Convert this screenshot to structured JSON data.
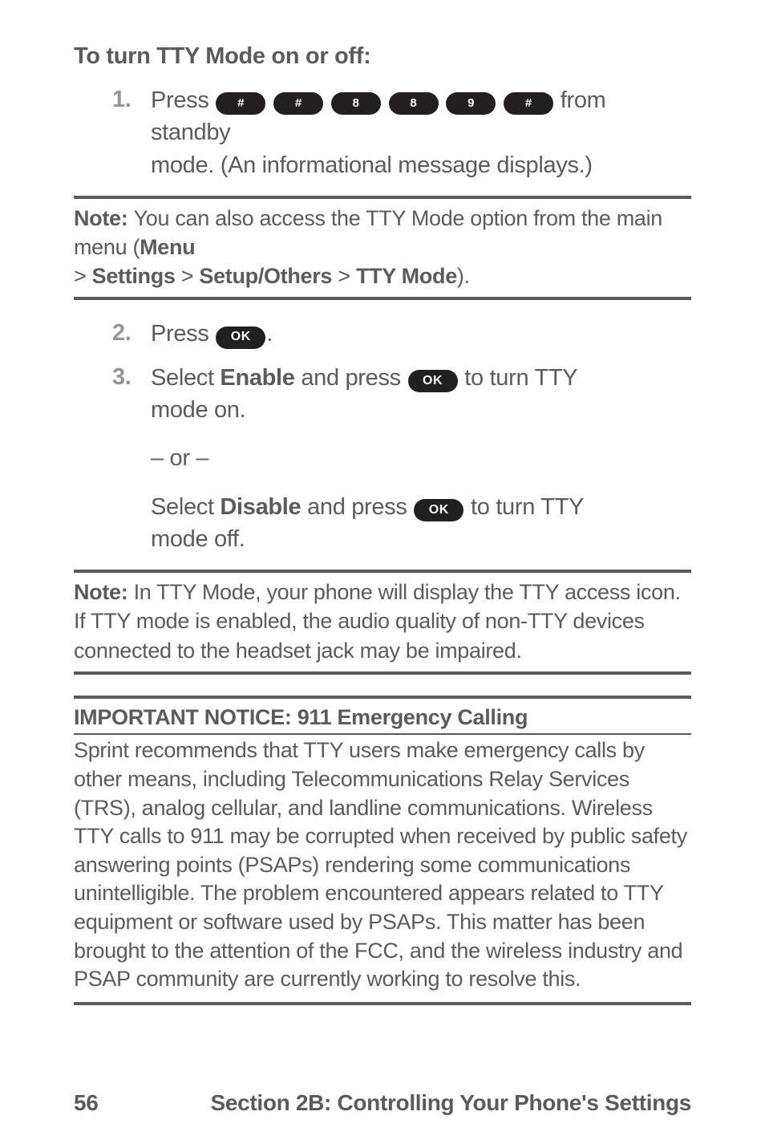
{
  "heading": "To turn TTY  Mode on or off:",
  "steps": {
    "s1": {
      "num": "1.",
      "pre": "Press ",
      "keys": [
        "#",
        "#",
        "8",
        "8",
        "9",
        "#"
      ],
      "post1": " from standby",
      "line2": "mode. (An informational message displays.)"
    }
  },
  "note1": {
    "label": "Note: ",
    "t1": "You can also access the TTY Mode option from the main menu (",
    "menu": "Menu",
    "sep": " > ",
    "settings": "Settings",
    "setup": "Setup/Others",
    "tty": "TTY Mode",
    "tail": ")."
  },
  "steps2": {
    "s2": {
      "num": "2.",
      "pre": "Press ",
      "ok": "OK",
      "post": "."
    },
    "s3": {
      "num": "3.",
      "pre": "Select ",
      "enable": "Enable",
      "mid": " and press ",
      "ok": "OK",
      "post": " to turn TTY",
      "line2": "mode on.",
      "or": "– or –",
      "pre2": "Select ",
      "disable": "Disable",
      "mid2": " and press ",
      "ok2": "OK",
      "post2": " to turn TTY",
      "line3": "mode off."
    }
  },
  "note2": {
    "label": "Note: ",
    "l1": "In TTY Mode, your phone will display the TTY access icon.",
    "l2": "If TTY mode is enabled, the audio quality of non-TTY devices connected to the headset jack may be impaired."
  },
  "imp": {
    "title": "IMPORTANT  NOTICE:  911 Emergency Calling",
    "body": "Sprint recommends that TTY users make emergency calls by other means, including Telecommunications Relay Services (TRS), analog cellular, and landline communications. Wireless TTY calls to 911 may be corrupted when received by public safety answering points (PSAPs) rendering some communications unintelligible. The problem encountered appears related to TTY equipment or software used by PSAPs. This matter has been brought to the attention of the FCC, and the wireless industry and PSAP community are currently working to resolve this."
  },
  "footer": {
    "page": "56",
    "section": "Section 2B: Controlling Your Phone's Settings"
  },
  "colors": {
    "text": "#5a5b5d",
    "num": "#939598",
    "key_bg": "#231f20",
    "key_fg": "#ffffff",
    "bg": "#ffffff"
  }
}
